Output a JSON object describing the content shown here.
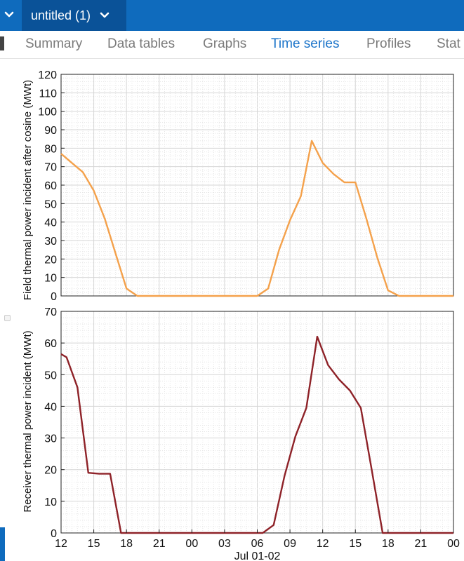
{
  "topbar": {
    "document_title": "untitled (1)"
  },
  "tabs": [
    {
      "label": "Summary",
      "active": false
    },
    {
      "label": "Data tables",
      "active": false
    },
    {
      "label": "Graphs",
      "active": false
    },
    {
      "label": "Time series",
      "active": true
    },
    {
      "label": "Profiles",
      "active": false
    },
    {
      "label": "Stat",
      "active": false
    }
  ],
  "colors": {
    "accent": "#0f6bbd",
    "series_orange": "#f4a14b",
    "series_red": "#8e2228"
  },
  "chart_data": [
    {
      "type": "line",
      "ylabel": "Field thermal power incident after cosine (MWt)",
      "xlabel": "",
      "ylim": [
        0,
        120
      ],
      "yticks": [
        0,
        10,
        20,
        30,
        40,
        50,
        60,
        70,
        80,
        90,
        100,
        110,
        120
      ],
      "grid": true,
      "x": [
        12,
        13,
        14,
        15,
        16,
        17,
        18,
        19,
        20,
        21,
        22,
        23,
        24,
        25,
        26,
        27,
        28,
        29,
        30,
        31,
        32,
        33,
        34,
        35,
        36,
        37,
        38,
        39,
        40,
        41,
        42,
        43,
        44,
        45,
        46,
        47,
        48
      ],
      "series": [
        {
          "values": [
            77,
            72,
            67,
            57,
            42,
            23,
            4,
            0,
            0,
            0,
            0,
            0,
            0,
            0,
            0,
            0,
            0,
            0,
            0,
            4,
            25,
            41,
            54,
            84,
            72,
            66,
            61.5,
            61.5,
            42,
            21,
            3,
            0,
            0,
            0,
            0,
            0,
            0
          ]
        }
      ]
    },
    {
      "type": "line",
      "ylabel": "Receiver thermal power incident (MWt)",
      "xlabel": "Jul 01-02",
      "ylim": [
        0,
        70
      ],
      "yticks": [
        0,
        10,
        20,
        30,
        40,
        50,
        60,
        70
      ],
      "xticks": [
        "12",
        "15",
        "18",
        "21",
        "00",
        "03",
        "06",
        "09",
        "12",
        "15",
        "18",
        "21",
        "00"
      ],
      "grid": true,
      "x": [
        12,
        12.5,
        13.5,
        14.5,
        15.5,
        16.5,
        17.5,
        18.5,
        19.5,
        20.5,
        21.5,
        22.5,
        23.5,
        24.5,
        25.5,
        26.5,
        27.5,
        28.5,
        29.5,
        30.5,
        31.5,
        32.5,
        33.5,
        34.5,
        35.5,
        36.5,
        37.5,
        38.5,
        39.5,
        40.5,
        41.5,
        42.5,
        43.5,
        44.5,
        45.5,
        46.5,
        47.5,
        48
      ],
      "series": [
        {
          "values": [
            56.5,
            55.5,
            46,
            19,
            18.7,
            18.7,
            0,
            0,
            0,
            0,
            0,
            0,
            0,
            0,
            0,
            0,
            0,
            0,
            0,
            0,
            2.5,
            18,
            30.5,
            39.5,
            62,
            53,
            48.5,
            45,
            39.5,
            20,
            0,
            0,
            0,
            0,
            0,
            0,
            0,
            0
          ]
        }
      ]
    }
  ]
}
